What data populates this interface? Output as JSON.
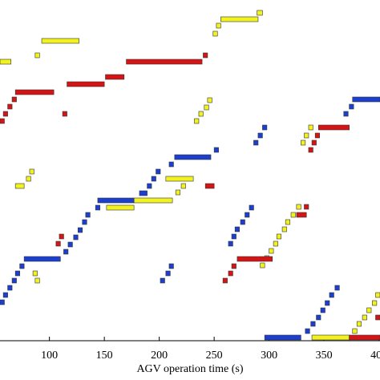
{
  "chart_data": {
    "type": "gantt",
    "x_label": "AGV operation time (s)",
    "xlim": [
      55,
      401
    ],
    "xticks": [
      100,
      150,
      200,
      250,
      300,
      350,
      400
    ],
    "ylim": [
      0,
      425
    ],
    "series": [
      {
        "color": "#f2f21e",
        "values": [
          [
            289,
            294,
            409
          ],
          [
            256,
            290,
            401
          ],
          [
            252,
            256,
            393
          ],
          [
            249,
            253,
            383
          ],
          [
            93,
            127,
            374
          ],
          [
            87,
            91,
            356
          ],
          [
            55,
            65,
            348
          ],
          [
            244,
            248,
            300
          ],
          [
            241,
            245,
            291
          ],
          [
            236,
            240,
            283
          ],
          [
            232,
            236,
            274
          ],
          [
            336,
            340,
            266
          ],
          [
            332,
            336,
            256
          ],
          [
            329,
            333,
            247
          ],
          [
            82,
            86,
            211
          ],
          [
            79,
            83,
            202
          ],
          [
            69,
            77,
            193
          ],
          [
            206,
            231,
            202
          ],
          [
            220,
            224,
            193
          ],
          [
            215,
            219,
            185
          ],
          [
            177,
            212,
            175
          ],
          [
            152,
            177,
            166
          ],
          [
            325,
            329,
            167
          ],
          [
            320,
            324,
            157
          ],
          [
            315,
            319,
            148
          ],
          [
            312,
            316,
            139
          ],
          [
            307,
            311,
            130
          ],
          [
            304,
            308,
            121
          ],
          [
            300,
            304,
            112
          ],
          [
            296,
            300,
            103
          ],
          [
            292,
            296,
            94
          ],
          [
            85,
            89,
            84
          ],
          [
            87,
            91,
            75
          ],
          [
            397,
            401,
            57
          ],
          [
            394,
            398,
            47
          ],
          [
            389,
            393,
            38
          ],
          [
            385,
            389,
            29
          ],
          [
            380,
            384,
            21
          ],
          [
            376,
            380,
            12
          ],
          [
            339,
            373,
            4
          ]
        ]
      },
      {
        "color": "#d51515",
        "values": [
          [
            170,
            239,
            348
          ],
          [
            240,
            244,
            356
          ],
          [
            151,
            168,
            329
          ],
          [
            116,
            150,
            320
          ],
          [
            69,
            104,
            310
          ],
          [
            66,
            70,
            301
          ],
          [
            62,
            66,
            292
          ],
          [
            58,
            62,
            283
          ],
          [
            55,
            59,
            274
          ],
          [
            112,
            116,
            283
          ],
          [
            345,
            373,
            266
          ],
          [
            342,
            346,
            256
          ],
          [
            339,
            343,
            247
          ],
          [
            336,
            340,
            238
          ],
          [
            242,
            250,
            193
          ],
          [
            332,
            336,
            167
          ],
          [
            325,
            334,
            157
          ],
          [
            109,
            113,
            130
          ],
          [
            106,
            110,
            121
          ],
          [
            271,
            303,
            102
          ],
          [
            266,
            270,
            93
          ],
          [
            263,
            267,
            84
          ],
          [
            258,
            262,
            75
          ],
          [
            373,
            401,
            4
          ],
          [
            397,
            401,
            29
          ]
        ]
      },
      {
        "color": "#1c3fd0",
        "values": [
          [
            376,
            401,
            301
          ],
          [
            373,
            377,
            292
          ],
          [
            368,
            372,
            283
          ],
          [
            294,
            298,
            266
          ],
          [
            290,
            294,
            256
          ],
          [
            286,
            290,
            247
          ],
          [
            214,
            247,
            229
          ],
          [
            250,
            254,
            238
          ],
          [
            209,
            213,
            220
          ],
          [
            197,
            201,
            211
          ],
          [
            193,
            197,
            202
          ],
          [
            189,
            193,
            193
          ],
          [
            182,
            189,
            184
          ],
          [
            144,
            177,
            175
          ],
          [
            142,
            146,
            166
          ],
          [
            133,
            137,
            157
          ],
          [
            130,
            134,
            148
          ],
          [
            126,
            130,
            138
          ],
          [
            122,
            126,
            129
          ],
          [
            117,
            121,
            120
          ],
          [
            113,
            117,
            111
          ],
          [
            77,
            110,
            102
          ],
          [
            73,
            77,
            93
          ],
          [
            69,
            73,
            84
          ],
          [
            66,
            70,
            75
          ],
          [
            62,
            66,
            66
          ],
          [
            58,
            62,
            57
          ],
          [
            55,
            59,
            48
          ],
          [
            282,
            286,
            166
          ],
          [
            278,
            282,
            157
          ],
          [
            274,
            278,
            148
          ],
          [
            269,
            273,
            139
          ],
          [
            266,
            270,
            130
          ],
          [
            263,
            267,
            121
          ],
          [
            209,
            213,
            93
          ],
          [
            206,
            210,
            84
          ],
          [
            201,
            205,
            75
          ],
          [
            360,
            364,
            66
          ],
          [
            355,
            359,
            57
          ],
          [
            351,
            355,
            47
          ],
          [
            347,
            351,
            38
          ],
          [
            343,
            347,
            29
          ],
          [
            338,
            342,
            21
          ],
          [
            333,
            337,
            12
          ],
          [
            296,
            329,
            4
          ]
        ]
      }
    ]
  }
}
